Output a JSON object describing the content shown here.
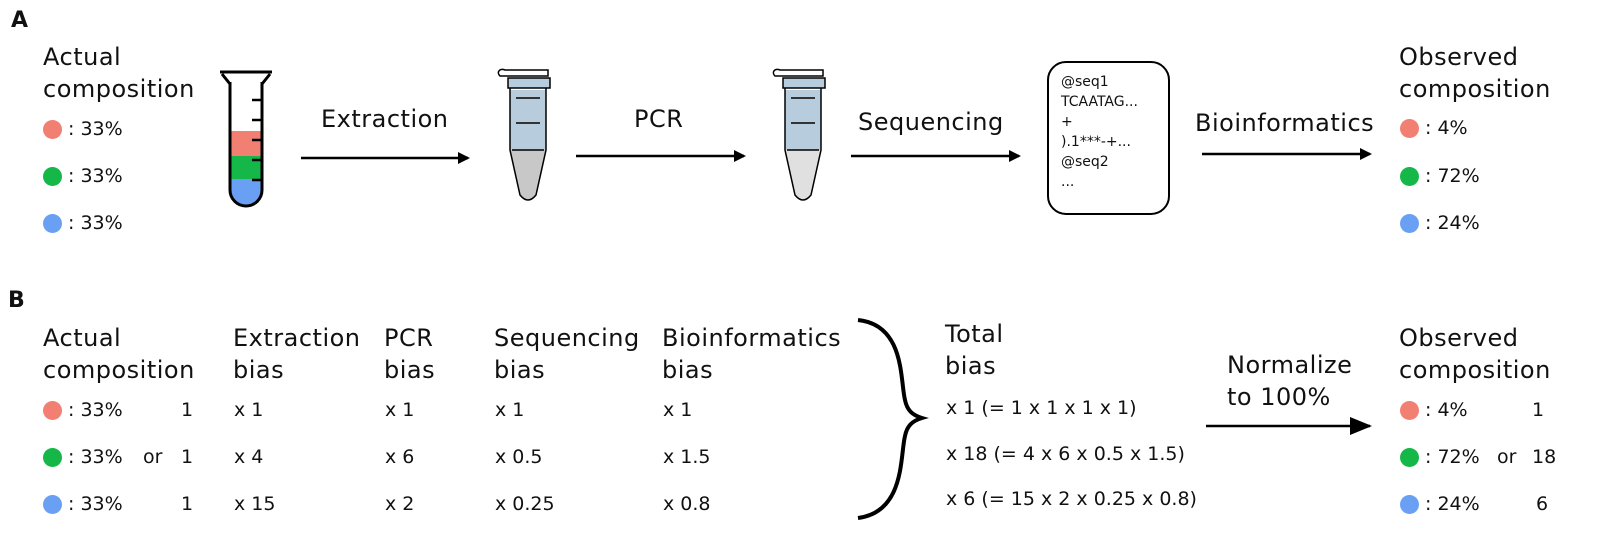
{
  "panel_a": {
    "label": "A",
    "actual_title": [
      "Actual",
      "composition"
    ],
    "actual_values": [
      ": 33%",
      ": 33%",
      ": 33%"
    ],
    "steps": [
      "Extraction",
      "PCR",
      "Sequencing",
      "Bioinformatics"
    ],
    "sequence_lines": [
      "@seq1",
      "TCAATAG...",
      "+",
      ").1***-+...",
      "@seq2",
      "..."
    ],
    "observed_title": [
      "Observed",
      "composition"
    ],
    "observed_values": [
      ": 4%",
      ": 72%",
      ": 24%"
    ]
  },
  "panel_b": {
    "label": "B",
    "actual_title": [
      "Actual",
      "composition"
    ],
    "actual_values": [
      ": 33%",
      ": 33%",
      ": 33%"
    ],
    "or_label": "or",
    "actual_ratio": [
      "1",
      "1",
      "1"
    ],
    "columns": [
      {
        "title": [
          "Extraction",
          "bias"
        ],
        "values": [
          "x 1",
          "x 4",
          "x 15"
        ]
      },
      {
        "title": [
          "PCR",
          "bias"
        ],
        "values": [
          "x 1",
          "x 6",
          "x 2"
        ]
      },
      {
        "title": [
          "Sequencing",
          "bias"
        ],
        "values": [
          "x 1",
          "x 0.5",
          "x 0.25"
        ]
      },
      {
        "title": [
          "Bioinformatics",
          "bias"
        ],
        "values": [
          "x 1",
          "x 1.5",
          "x 0.8"
        ]
      }
    ],
    "total_title": [
      "Total",
      "bias"
    ],
    "total_values": [
      "x 1 (= 1 x 1 x 1 x 1)",
      "x 18 (= 4 x 6 x 0.5 x 1.5)",
      "x 6 (= 15 x 2 x 0.25 x 0.8)"
    ],
    "normalize_label": [
      "Normalize",
      "to 100%"
    ],
    "observed_title": [
      "Observed",
      "composition"
    ],
    "observed_values": [
      ": 4%",
      ": 72%",
      ": 24%"
    ],
    "observed_ratio": [
      "1",
      "18",
      "6"
    ]
  },
  "colors": {
    "red": "#F28072",
    "green": "#15B848",
    "blue": "#6AA0F3",
    "tube_blue": "#B7CCDC",
    "tube_gray": "#C8C8C8"
  }
}
